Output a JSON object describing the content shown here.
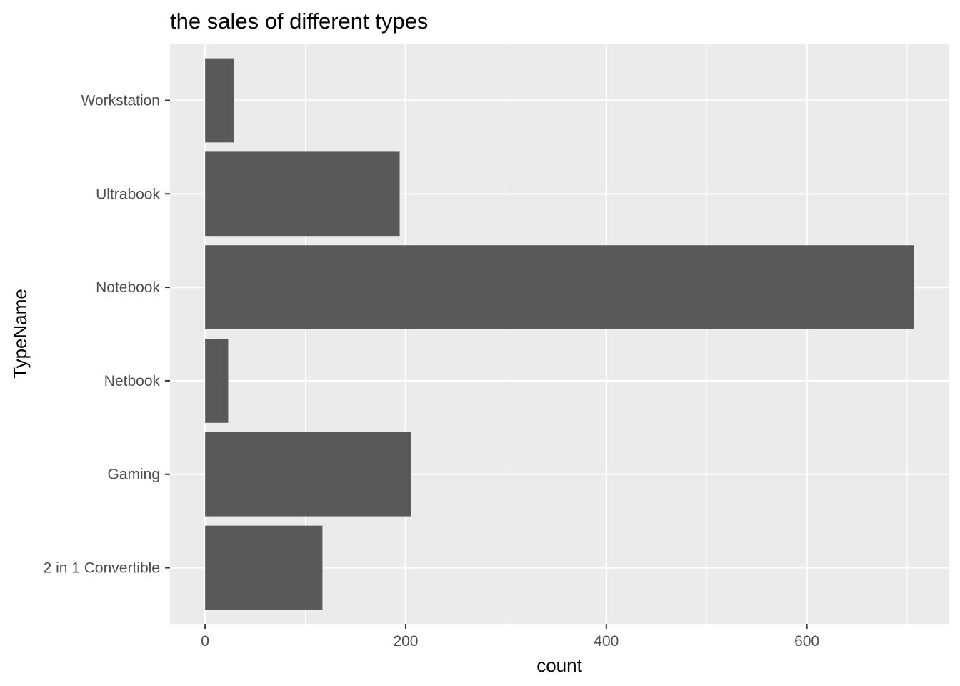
{
  "chart_data": {
    "type": "bar",
    "orientation": "horizontal",
    "title": "the sales of different types",
    "xlabel": "count",
    "ylabel": "TypeName",
    "categories": [
      "2 in 1 Convertible",
      "Gaming",
      "Netbook",
      "Notebook",
      "Ultrabook",
      "Workstation"
    ],
    "values": [
      117,
      205,
      23,
      707,
      194,
      29
    ],
    "xlim": [
      -35,
      742
    ],
    "x_ticks": [
      0,
      200,
      400,
      600
    ],
    "grid": true,
    "legend": "none",
    "colors": {
      "panel": "#ebebeb",
      "grid": "#ffffff",
      "bar": "#595959",
      "tick": "#333333"
    }
  }
}
